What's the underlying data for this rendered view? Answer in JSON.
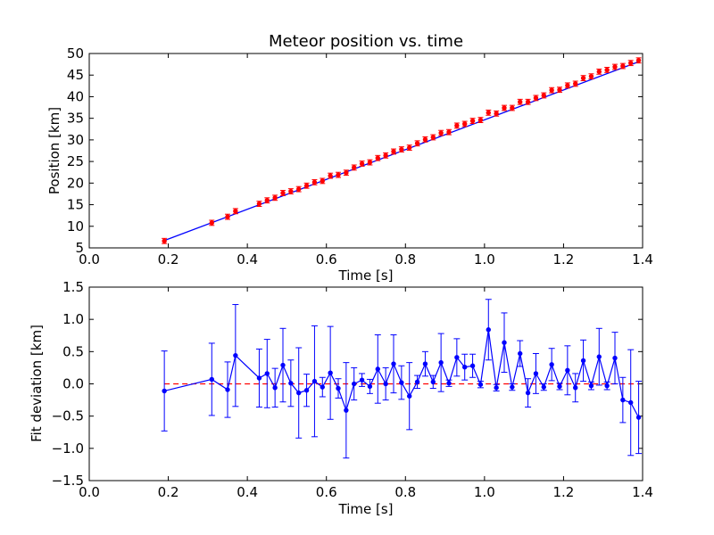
{
  "chart_data": [
    {
      "type": "scatter",
      "title": "Meteor position vs. time",
      "xlabel": "Time [s]",
      "ylabel": "Position [km]",
      "xlim": [
        0.0,
        1.4
      ],
      "ylim": [
        5,
        50
      ],
      "xticks": [
        "0.0",
        "0.2",
        "0.4",
        "0.6",
        "0.8",
        "1.0",
        "1.2",
        "1.4"
      ],
      "yticks": [
        "5",
        "10",
        "15",
        "20",
        "25",
        "30",
        "35",
        "40",
        "45",
        "50"
      ],
      "grid": false,
      "colors": {
        "measurement": "#ff0000",
        "fit": "#0000ff"
      },
      "series": [
        {
          "kind": "errorbar",
          "x": [
            0.19,
            0.31,
            0.35,
            0.37,
            0.43,
            0.45,
            0.47,
            0.49,
            0.51,
            0.53,
            0.55,
            0.57,
            0.59,
            0.61,
            0.63,
            0.65,
            0.67,
            0.69,
            0.71,
            0.73,
            0.75,
            0.77,
            0.79,
            0.81,
            0.83,
            0.85,
            0.87,
            0.89,
            0.91,
            0.93,
            0.95,
            0.97,
            0.99,
            1.01,
            1.03,
            1.05,
            1.07,
            1.09,
            1.11,
            1.13,
            1.15,
            1.17,
            1.19,
            1.21,
            1.23,
            1.25,
            1.27,
            1.29,
            1.31,
            1.33,
            1.35,
            1.37,
            1.39
          ],
          "y": [
            6.6,
            10.8,
            12.2,
            13.5,
            15.2,
            16.0,
            16.6,
            17.7,
            18.1,
            18.6,
            19.4,
            20.2,
            20.5,
            21.7,
            21.9,
            22.4,
            23.6,
            24.5,
            24.8,
            25.8,
            26.4,
            27.3,
            27.8,
            28.2,
            29.2,
            30.1,
            30.6,
            31.6,
            31.8,
            33.3,
            33.7,
            34.4,
            34.6,
            36.3,
            36.1,
            37.4,
            37.4,
            38.8,
            38.8,
            39.7,
            40.3,
            41.5,
            41.6,
            42.6,
            43.0,
            44.3,
            44.7,
            45.8,
            46.2,
            46.9,
            47.1,
            47.8,
            48.4
          ],
          "yerr": 0.6
        },
        {
          "kind": "line",
          "x": [
            0.19,
            1.39
          ],
          "y": [
            6.7,
            48.1
          ]
        }
      ]
    },
    {
      "type": "line",
      "xlabel": "Time [s]",
      "ylabel": "Fit deviation [km]",
      "xlim": [
        0.0,
        1.4
      ],
      "ylim": [
        -1.5,
        1.5
      ],
      "xticks": [
        "0.0",
        "0.2",
        "0.4",
        "0.6",
        "0.8",
        "1.0",
        "1.2",
        "1.4"
      ],
      "yticks": [
        "−1.5",
        "−1.0",
        "−0.5",
        "0.0",
        "0.5",
        "1.0",
        "1.5"
      ],
      "grid": false,
      "colors": {
        "deviation": "#0000ff",
        "zero": "#ff0000"
      },
      "series": [
        {
          "kind": "errorbar",
          "x": [
            0.19,
            0.31,
            0.35,
            0.37,
            0.43,
            0.45,
            0.47,
            0.49,
            0.51,
            0.53,
            0.55,
            0.57,
            0.59,
            0.61,
            0.63,
            0.65,
            0.67,
            0.69,
            0.71,
            0.73,
            0.75,
            0.77,
            0.79,
            0.81,
            0.83,
            0.85,
            0.87,
            0.89,
            0.91,
            0.93,
            0.95,
            0.97,
            0.99,
            1.01,
            1.03,
            1.05,
            1.07,
            1.09,
            1.11,
            1.13,
            1.15,
            1.17,
            1.19,
            1.21,
            1.23,
            1.25,
            1.27,
            1.29,
            1.31,
            1.33,
            1.35,
            1.37,
            1.39
          ],
          "y": [
            -0.11,
            0.07,
            -0.09,
            0.44,
            0.09,
            0.16,
            -0.06,
            0.29,
            0.01,
            -0.14,
            -0.1,
            0.04,
            -0.05,
            0.17,
            -0.07,
            -0.41,
            0.0,
            0.06,
            -0.04,
            0.23,
            0.0,
            0.31,
            0.02,
            -0.19,
            0.03,
            0.31,
            0.03,
            0.33,
            0.01,
            0.41,
            0.26,
            0.28,
            -0.01,
            0.84,
            -0.06,
            0.64,
            -0.05,
            0.47,
            -0.14,
            0.16,
            -0.05,
            0.3,
            -0.04,
            0.21,
            -0.06,
            0.36,
            -0.03,
            0.42,
            -0.03,
            0.4,
            -0.25,
            -0.29,
            -0.52
          ],
          "yerr": [
            0.62,
            0.56,
            0.43,
            0.79,
            0.45,
            0.53,
            0.3,
            0.57,
            0.36,
            0.7,
            0.25,
            0.86,
            0.15,
            0.72,
            0.15,
            0.74,
            0.25,
            0.1,
            0.11,
            0.53,
            0.25,
            0.45,
            0.26,
            0.52,
            0.1,
            0.19,
            0.1,
            0.45,
            0.05,
            0.29,
            0.2,
            0.18,
            0.05,
            0.47,
            0.05,
            0.46,
            0.05,
            0.2,
            0.22,
            0.31,
            0.05,
            0.25,
            0.05,
            0.38,
            0.22,
            0.32,
            0.06,
            0.44,
            0.06,
            0.4,
            0.35,
            0.82,
            0.56
          ]
        },
        {
          "kind": "dashed",
          "x": [
            0.19,
            1.39
          ],
          "y": [
            0.0,
            0.0
          ]
        }
      ]
    }
  ]
}
